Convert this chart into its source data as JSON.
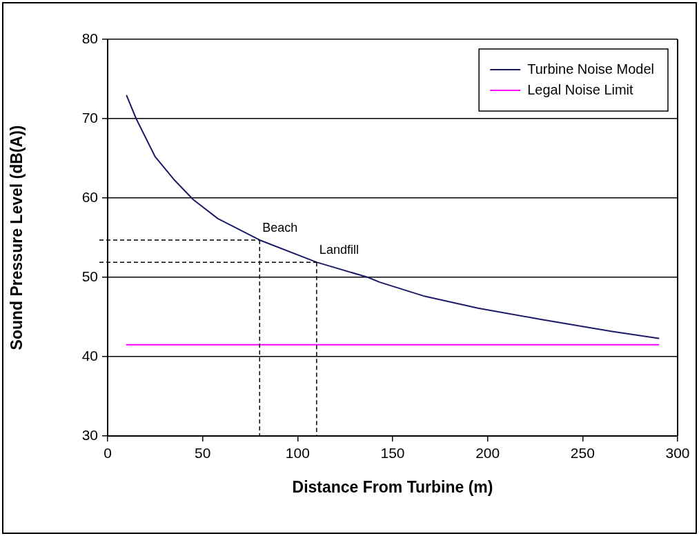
{
  "chart_data": {
    "type": "line",
    "xlabel": "Distance From Turbine (m)",
    "ylabel": "Sound Pressure Level (dB(A))",
    "series": [
      {
        "name": "Turbine Noise Model",
        "color": "#1a1a66",
        "x": [
          10,
          15,
          25,
          35,
          45,
          58,
          80,
          110,
          137,
          143,
          167,
          195,
          228,
          265,
          290
        ],
        "values": [
          72.9,
          70,
          65.2,
          62.3,
          59.8,
          57.4,
          54.7,
          51.9,
          50,
          49.4,
          47.6,
          46.1,
          44.7,
          43.2,
          42.3
        ]
      },
      {
        "name": "Legal Noise Limit",
        "color": "#ff00ff",
        "x": [
          10,
          290
        ],
        "values": [
          41.5,
          41.5
        ]
      }
    ],
    "annotations": [
      {
        "text": "Beach",
        "x": 80,
        "y": 54.7
      },
      {
        "text": "Landfill",
        "x": 110,
        "y": 51.9
      }
    ],
    "xlim": [
      0,
      300
    ],
    "xticks": [
      0,
      50,
      100,
      150,
      200,
      250,
      300
    ],
    "ylim": [
      30,
      80
    ],
    "yticks": [
      30,
      40,
      50,
      60,
      70,
      80
    ],
    "grid": "y",
    "legend": "top right",
    "marker": "none",
    "line_style": "solid"
  }
}
